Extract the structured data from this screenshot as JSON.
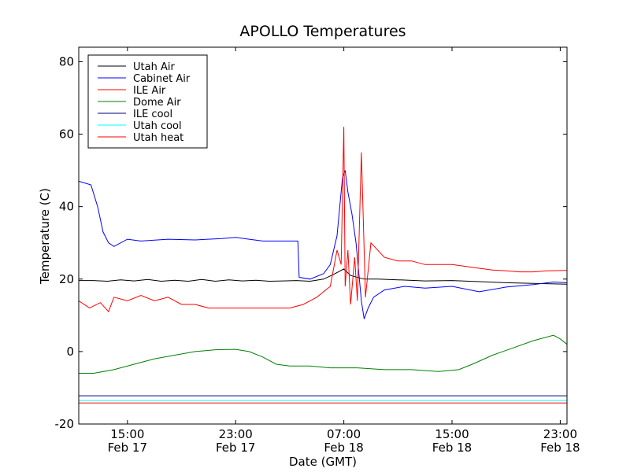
{
  "chart_data": {
    "type": "line",
    "title": "APOLLO Temperatures",
    "xlabel": "Date (GMT)",
    "ylabel": "Temperature (C)",
    "x_units": "hours since Feb 17 00:00 GMT",
    "xlim": [
      11.4,
      47.5
    ],
    "ylim": [
      -20,
      84
    ],
    "x_ticks": [
      {
        "x": 15,
        "time": "15:00",
        "date": "Feb 17"
      },
      {
        "x": 23,
        "time": "23:00",
        "date": "Feb 17"
      },
      {
        "x": 31,
        "time": "07:00",
        "date": "Feb 18"
      },
      {
        "x": 39,
        "time": "15:00",
        "date": "Feb 18"
      },
      {
        "x": 47,
        "time": "23:00",
        "date": "Feb 18"
      }
    ],
    "y_ticks": [
      {
        "value": -20,
        "label": "-20"
      },
      {
        "value": 0,
        "label": "0"
      },
      {
        "value": 20,
        "label": "20"
      },
      {
        "value": 40,
        "label": "40"
      },
      {
        "value": 60,
        "label": "60"
      },
      {
        "value": 80,
        "label": "80"
      }
    ],
    "legend_position": "top-left",
    "series": [
      {
        "name": "Utah Air",
        "color": "#000000",
        "x": [
          11.4,
          12.5,
          13.5,
          14.5,
          15.5,
          16.5,
          17.5,
          18.5,
          19.5,
          20.5,
          21.5,
          22.5,
          23.5,
          24.5,
          25.5,
          26.5,
          27.5,
          28.5,
          29.5,
          30.2,
          31.0,
          31.5,
          32.5,
          33.5,
          35.0,
          37.0,
          39.0,
          41.0,
          43.0,
          45.0,
          47.5
        ],
        "y": [
          19.6,
          19.6,
          19.4,
          19.8,
          19.5,
          19.9,
          19.4,
          19.7,
          19.4,
          19.9,
          19.4,
          19.8,
          19.5,
          19.7,
          19.4,
          19.5,
          19.6,
          19.4,
          20.0,
          21.2,
          22.8,
          21.0,
          20.0,
          20.0,
          19.8,
          19.5,
          19.6,
          19.3,
          19.0,
          18.8,
          18.6
        ]
      },
      {
        "name": "Cabinet Air",
        "color": "#0000ff",
        "x": [
          11.4,
          12.3,
          12.8,
          13.2,
          13.6,
          14.0,
          15.0,
          16.0,
          18.0,
          20.0,
          22.0,
          23.0,
          24.0,
          25.0,
          27.0,
          27.6,
          27.7,
          28.5,
          29.5,
          30.0,
          30.5,
          30.9,
          31.1,
          31.3,
          31.6,
          31.9,
          32.1,
          32.3,
          32.5,
          32.8,
          33.2,
          34.0,
          35.5,
          37.0,
          39.0,
          41.0,
          43.0,
          45.0,
          46.5,
          47.5
        ],
        "y": [
          47.0,
          46.0,
          40.0,
          33.0,
          30.0,
          29.0,
          31.0,
          30.5,
          31.0,
          30.8,
          31.2,
          31.5,
          31.0,
          30.5,
          30.5,
          30.5,
          20.5,
          20.0,
          21.5,
          24.0,
          32.0,
          48.0,
          50.0,
          44.0,
          38.0,
          30.0,
          22.0,
          14.0,
          9.0,
          12.0,
          15.0,
          17.0,
          18.0,
          17.5,
          18.0,
          16.5,
          17.8,
          18.5,
          19.2,
          19.0
        ]
      },
      {
        "name": "ILE Air",
        "color": "#ff0000",
        "x": [
          11.4,
          12.2,
          13.0,
          13.6,
          14.0,
          15.0,
          16.0,
          17.0,
          18.0,
          19.0,
          20.0,
          21.0,
          22.0,
          23.0,
          24.0,
          25.0,
          26.0,
          27.0,
          28.0,
          29.0,
          30.0,
          30.5,
          30.8,
          31.0,
          31.1,
          31.3,
          31.5,
          31.8,
          32.0,
          32.3,
          32.6,
          33.0,
          34.0,
          35.0,
          36.0,
          37.0,
          38.0,
          39.0,
          40.0,
          41.0,
          42.0,
          43.0,
          44.0,
          45.0,
          46.0,
          47.5
        ],
        "y": [
          14.0,
          12.0,
          13.5,
          11.0,
          15.0,
          14.0,
          15.5,
          14.0,
          15.0,
          13.0,
          13.0,
          12.0,
          12.0,
          12.0,
          12.0,
          12.0,
          12.0,
          12.0,
          13.0,
          15.0,
          18.0,
          28.0,
          24.0,
          62.0,
          18.0,
          28.0,
          13.0,
          26.0,
          14.0,
          55.0,
          15.0,
          30.0,
          26.0,
          25.0,
          25.0,
          24.0,
          24.0,
          24.0,
          23.5,
          23.0,
          22.5,
          22.3,
          22.0,
          22.0,
          22.3,
          22.4
        ]
      },
      {
        "name": "Dome Air",
        "color": "#008000",
        "x": [
          11.4,
          12.5,
          14.0,
          15.5,
          17.0,
          18.5,
          20.0,
          21.5,
          23.0,
          24.0,
          25.0,
          26.0,
          27.0,
          28.5,
          30.0,
          32.0,
          34.0,
          36.0,
          38.0,
          39.5,
          40.5,
          42.0,
          43.5,
          45.0,
          46.5,
          47.0,
          47.5
        ],
        "y": [
          -6.0,
          -6.0,
          -5.0,
          -3.5,
          -2.0,
          -1.0,
          0.0,
          0.5,
          0.6,
          0.0,
          -1.5,
          -3.5,
          -4.0,
          -4.0,
          -4.5,
          -4.5,
          -5.0,
          -5.0,
          -5.5,
          -5.0,
          -3.5,
          -1.0,
          1.0,
          3.0,
          4.5,
          3.5,
          2.0
        ]
      },
      {
        "name": "ILE cool",
        "color": "#000080",
        "x": [
          11.4,
          47.5
        ],
        "y": [
          -12.2,
          -12.2
        ]
      },
      {
        "name": "Utah cool",
        "color": "#00ffff",
        "x": [
          11.4,
          47.5
        ],
        "y": [
          -13.5,
          -13.5
        ]
      },
      {
        "name": "Utah heat",
        "color": "#ff0000",
        "x": [
          11.4,
          47.5
        ],
        "y": [
          -14.2,
          -14.2
        ]
      }
    ]
  }
}
